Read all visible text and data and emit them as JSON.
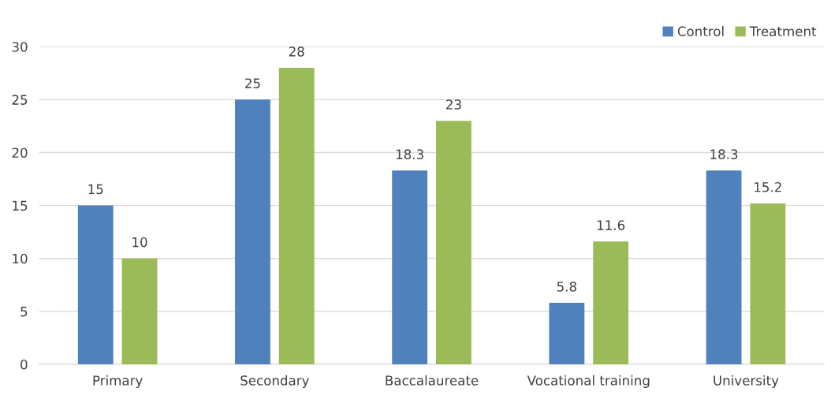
{
  "chart_data": {
    "type": "bar",
    "categories": [
      "Primary",
      "Secondary",
      "Baccalaureate",
      "Vocational training",
      "University"
    ],
    "series": [
      {
        "name": "Control",
        "color": "#4f81bd",
        "values": [
          15,
          25,
          18.3,
          5.8,
          18.3
        ]
      },
      {
        "name": "Treatment",
        "color": "#9bbb59",
        "values": [
          10,
          28,
          23,
          11.6,
          15.2
        ]
      }
    ],
    "ylim": [
      0,
      30
    ],
    "yticks": [
      0,
      5,
      10,
      15,
      20,
      25,
      30
    ],
    "grid": "y",
    "legend": "top right",
    "data_labels": true
  }
}
